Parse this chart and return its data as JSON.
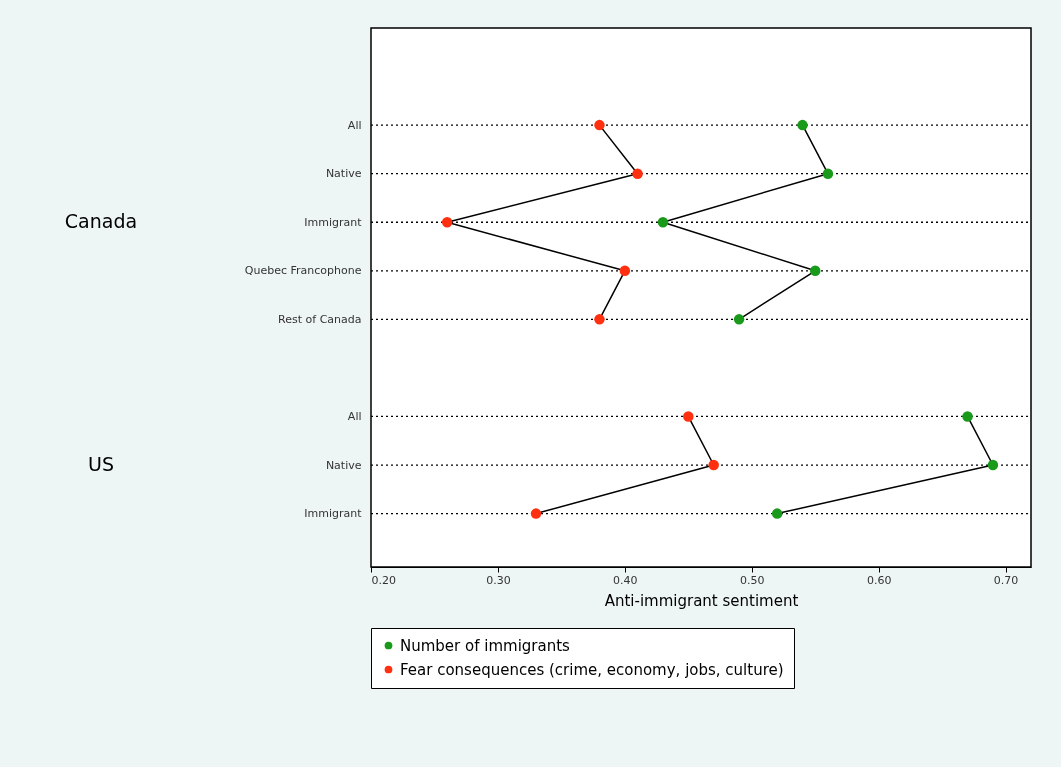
{
  "chart_data": {
    "type": "line",
    "xlabel": "Anti-immigrant sentiment",
    "categories": [
      "All",
      "Native",
      "Immigrant",
      "Quebec Francophone",
      "Rest of Canada",
      null,
      "All",
      "Native",
      "Immigrant"
    ],
    "series": [
      {
        "name": "Number of immigrants",
        "color": "#1a9a1a",
        "values": [
          0.54,
          0.56,
          0.43,
          0.55,
          0.49,
          null,
          0.67,
          0.69,
          0.52
        ]
      },
      {
        "name": "Fear consequences (crime, economy, jobs, culture)",
        "color": "#ff3010",
        "values": [
          0.38,
          0.41,
          0.26,
          0.4,
          0.38,
          null,
          0.45,
          0.47,
          0.33
        ]
      }
    ],
    "annotations": [
      "Canada",
      "US"
    ],
    "orientation": "horizontal",
    "xlim": [
      0.2,
      0.72
    ],
    "xticks": [
      {
        "value": 0.2,
        "label": "0.20"
      },
      {
        "value": 0.3,
        "label": "0.30"
      },
      {
        "value": 0.4,
        "label": "0.40"
      },
      {
        "value": 0.5,
        "label": "0.50"
      },
      {
        "value": 0.6,
        "label": "0.60"
      },
      {
        "value": 0.7,
        "label": "0.70"
      }
    ],
    "grid": "y",
    "legend": "bottom",
    "marker": "circle",
    "line_style": "solid"
  }
}
